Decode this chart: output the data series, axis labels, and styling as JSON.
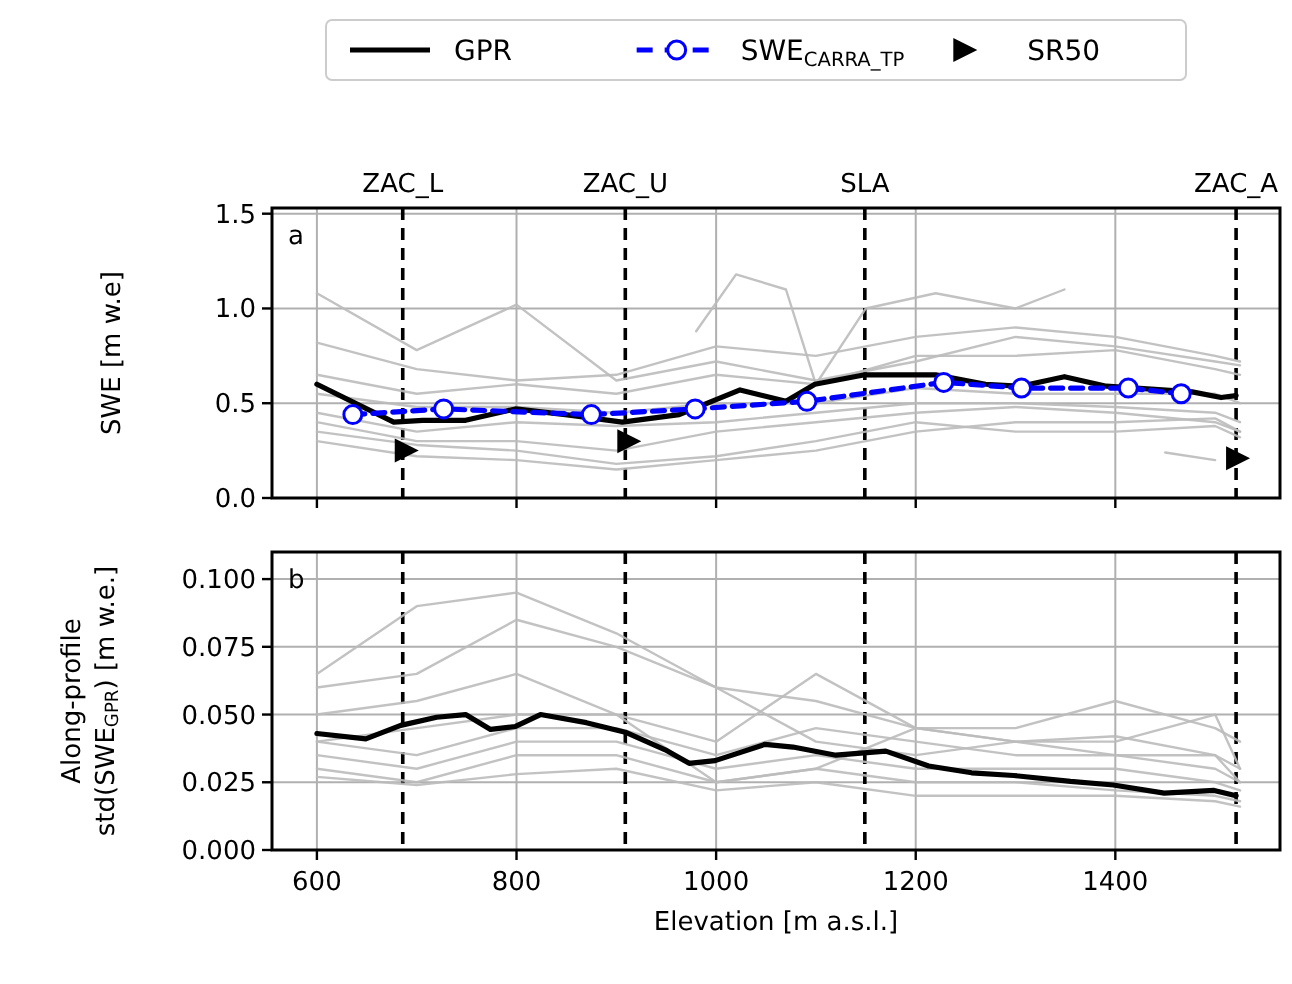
{
  "chart_data": [
    {
      "type": "line",
      "ylabel": "SWE [m w.e]",
      "xlim": [
        555,
        1565
      ],
      "xticks": [
        600,
        800,
        1000,
        1200,
        1400
      ],
      "ylim": [
        0,
        1.53
      ],
      "yticks": [
        {
          "value": 0,
          "label": "0.0"
        },
        {
          "value": 0.5,
          "label": "0.5"
        },
        {
          "value": 1,
          "label": "1.0"
        },
        {
          "value": 1.5,
          "label": "1.5"
        }
      ],
      "tick_labels": "y",
      "grid": true,
      "legend": "top",
      "annotations": [
        "a"
      ],
      "ref_lines": [
        {
          "axis": "x",
          "value": 686,
          "label": "ZAC_L",
          "line_style": "dashed",
          "color": "#000000"
        },
        {
          "axis": "x",
          "value": 909,
          "label": "ZAC_U",
          "line_style": "dashed",
          "color": "#000000"
        },
        {
          "axis": "x",
          "value": 1149,
          "label": "SLA",
          "line_style": "dashed",
          "color": "#000000"
        },
        {
          "axis": "x",
          "value": 1521,
          "label": "ZAC_A",
          "line_style": "dashed",
          "color": "#000000"
        }
      ],
      "series": [
        {
          "color": "#bbbbbb",
          "x": [
            600,
            700,
            800,
            900,
            1000,
            1100,
            1200,
            1300,
            1400,
            1500,
            1525
          ],
          "values": [
            1.08,
            0.78,
            1.02,
            0.62,
            0.72,
            0.62,
            0.72,
            0.85,
            0.8,
            0.72,
            0.7
          ]
        },
        {
          "color": "#bbbbbb",
          "x": [
            600,
            700,
            800,
            900,
            1000,
            1100,
            1200,
            1300,
            1400,
            1500,
            1525
          ],
          "values": [
            0.82,
            0.68,
            0.62,
            0.65,
            0.8,
            0.75,
            0.85,
            0.9,
            0.85,
            0.75,
            0.72
          ]
        },
        {
          "color": "#bbbbbb",
          "x": [
            600,
            700,
            800,
            900,
            1000,
            1100,
            1200,
            1300,
            1400,
            1500,
            1525
          ],
          "values": [
            0.65,
            0.55,
            0.6,
            0.55,
            0.65,
            0.6,
            0.75,
            0.75,
            0.78,
            0.68,
            0.65
          ]
        },
        {
          "color": "#bbbbbb",
          "x": [
            600,
            700,
            800,
            900,
            1000,
            1100,
            1200,
            1300,
            1400,
            1500,
            1525
          ],
          "values": [
            0.55,
            0.48,
            0.48,
            0.45,
            0.5,
            0.5,
            0.58,
            0.55,
            0.55,
            0.55,
            0.5
          ]
        },
        {
          "color": "#bbbbbb",
          "x": [
            600,
            700,
            800,
            900,
            1000,
            1100,
            1200,
            1300,
            1400,
            1500,
            1525
          ],
          "values": [
            0.45,
            0.35,
            0.4,
            0.38,
            0.4,
            0.45,
            0.5,
            0.5,
            0.48,
            0.45,
            0.4
          ]
        },
        {
          "color": "#bbbbbb",
          "x": [
            600,
            700,
            800,
            900,
            1000,
            1100,
            1200,
            1300,
            1400,
            1500,
            1525
          ],
          "values": [
            0.4,
            0.3,
            0.3,
            0.25,
            0.35,
            0.4,
            0.45,
            0.48,
            0.45,
            0.4,
            0.35
          ]
        },
        {
          "color": "#bbbbbb",
          "x": [
            600,
            700,
            800,
            900,
            1000,
            1100,
            1200,
            1300,
            1400,
            1500,
            1525
          ],
          "values": [
            0.35,
            0.28,
            0.25,
            0.18,
            0.22,
            0.3,
            0.4,
            0.35,
            0.35,
            0.38,
            0.32
          ]
        },
        {
          "color": "#bbbbbb",
          "x": [
            600,
            700,
            800,
            900,
            1000,
            1100,
            1200,
            1300,
            1400,
            1500,
            1525
          ],
          "values": [
            0.3,
            0.22,
            0.2,
            0.15,
            0.2,
            0.25,
            0.35,
            0.4,
            0.4,
            0.42,
            0.35
          ]
        },
        {
          "color": "#bbbbbb",
          "x": [
            980,
            1020,
            1070,
            1100,
            1150,
            1220,
            1300,
            1349
          ],
          "values": [
            0.88,
            1.18,
            1.1,
            0.6,
            1.0,
            1.08,
            1.0,
            1.1
          ]
        },
        {
          "color": "#bbbbbb",
          "x": [
            1450,
            1500
          ],
          "values": [
            0.24,
            0.2
          ]
        },
        {
          "name": "GPR",
          "color": "#000000",
          "line_style": "solid",
          "marker": "none",
          "x": [
            600,
            677,
            706,
            749,
            799,
            849,
            906,
            963,
            1024,
            1070,
            1099,
            1149,
            1220,
            1270,
            1305,
            1349,
            1391,
            1477,
            1506,
            1521
          ],
          "values": [
            0.6,
            0.4,
            0.41,
            0.41,
            0.47,
            0.44,
            0.4,
            0.44,
            0.57,
            0.51,
            0.6,
            0.65,
            0.65,
            0.6,
            0.59,
            0.64,
            0.59,
            0.56,
            0.53,
            0.54
          ]
        },
        {
          "name": "SWE$_{CARRA_TP}$",
          "color": "#0000ff",
          "line_style": "dashed",
          "marker": "circle",
          "x": [
            636,
            727,
            875,
            979,
            1091,
            1228,
            1306,
            1413,
            1466
          ],
          "values": [
            0.44,
            0.47,
            0.44,
            0.47,
            0.51,
            0.61,
            0.58,
            0.58,
            0.55
          ]
        },
        {
          "name": "SR50",
          "type": "scatter",
          "color": "#000000",
          "marker": "triangle",
          "x": [
            688,
            911,
            1521
          ],
          "values": [
            0.25,
            0.3,
            0.21
          ]
        }
      ]
    },
    {
      "type": "line",
      "xlabel": "Elevation [m a.s.l.]",
      "ylabel": "Along-profile\nstd(SWE$_{GPR}$) [m w.e.]",
      "xlim": [
        555,
        1565
      ],
      "xticks": [
        600,
        800,
        1000,
        1200,
        1400
      ],
      "ylim": [
        0,
        0.11
      ],
      "yticks": [
        {
          "value": 0,
          "label": "0.000"
        },
        {
          "value": 0.025,
          "label": "0.025"
        },
        {
          "value": 0.05,
          "label": "0.050"
        },
        {
          "value": 0.075,
          "label": "0.075"
        },
        {
          "value": 0.1,
          "label": "0.100"
        }
      ],
      "grid": true,
      "legend": false,
      "annotations": [
        "b"
      ],
      "ref_lines": [
        {
          "axis": "x",
          "value": 686,
          "line_style": "dashed",
          "color": "#000000"
        },
        {
          "axis": "x",
          "value": 909,
          "line_style": "dashed",
          "color": "#000000"
        },
        {
          "axis": "x",
          "value": 1149,
          "line_style": "dashed",
          "color": "#000000"
        },
        {
          "axis": "x",
          "value": 1521,
          "line_style": "dashed",
          "color": "#000000"
        }
      ],
      "series": [
        {
          "color": "#bbbbbb",
          "x": [
            600,
            700,
            800,
            900,
            1000,
            1100,
            1200,
            1300,
            1400,
            1500,
            1525
          ],
          "values": [
            0.065,
            0.09,
            0.095,
            0.08,
            0.06,
            0.04,
            0.035,
            0.04,
            0.035,
            0.03,
            0.025
          ]
        },
        {
          "color": "#bbbbbb",
          "x": [
            600,
            700,
            800,
            900,
            1000,
            1100,
            1200,
            1300,
            1400,
            1500,
            1525
          ],
          "values": [
            0.06,
            0.065,
            0.085,
            0.075,
            0.06,
            0.055,
            0.045,
            0.045,
            0.055,
            0.045,
            0.04
          ]
        },
        {
          "color": "#bbbbbb",
          "x": [
            600,
            700,
            800,
            900,
            1000,
            1100,
            1200,
            1300,
            1400,
            1500,
            1525
          ],
          "values": [
            0.05,
            0.055,
            0.065,
            0.05,
            0.04,
            0.065,
            0.045,
            0.04,
            0.04,
            0.05,
            0.03
          ]
        },
        {
          "color": "#bbbbbb",
          "x": [
            600,
            700,
            800,
            900,
            1000,
            1100,
            1200,
            1300,
            1400,
            1500,
            1525
          ],
          "values": [
            0.04,
            0.035,
            0.045,
            0.045,
            0.035,
            0.045,
            0.04,
            0.035,
            0.035,
            0.035,
            0.025
          ]
        },
        {
          "color": "#bbbbbb",
          "x": [
            600,
            700,
            800,
            900,
            1000,
            1100,
            1200,
            1300,
            1400,
            1500,
            1525
          ],
          "values": [
            0.035,
            0.03,
            0.04,
            0.04,
            0.03,
            0.035,
            0.03,
            0.03,
            0.03,
            0.025,
            0.022
          ]
        },
        {
          "color": "#bbbbbb",
          "x": [
            600,
            700,
            800,
            900,
            1000,
            1100,
            1200,
            1300,
            1400,
            1500,
            1525
          ],
          "values": [
            0.03,
            0.025,
            0.035,
            0.035,
            0.025,
            0.03,
            0.025,
            0.025,
            0.022,
            0.02,
            0.018
          ]
        },
        {
          "color": "#bbbbbb",
          "x": [
            600,
            700,
            800,
            900,
            1000,
            1100,
            1200,
            1300,
            1400,
            1500,
            1525
          ],
          "values": [
            0.027,
            0.024,
            0.028,
            0.03,
            0.022,
            0.025,
            0.02,
            0.02,
            0.02,
            0.018,
            0.016
          ]
        },
        {
          "color": "#bbbbbb",
          "x": [
            600,
            700,
            800,
            900,
            1000,
            1100,
            1200,
            1300,
            1400,
            1500,
            1525
          ],
          "values": [
            0.04,
            0.045,
            0.05,
            0.05,
            0.025,
            0.03,
            0.045,
            0.04,
            0.042,
            0.035,
            0.03
          ]
        },
        {
          "color": "#000000",
          "line_style": "solid",
          "marker": "none",
          "x": [
            600,
            649,
            684,
            720,
            749,
            774,
            799,
            824,
            870,
            909,
            949,
            973,
            999,
            1049,
            1077,
            1120,
            1170,
            1213,
            1256,
            1298,
            1355,
            1398,
            1449,
            1499,
            1521
          ],
          "values": [
            0.043,
            0.041,
            0.046,
            0.049,
            0.05,
            0.0445,
            0.0456,
            0.05,
            0.047,
            0.0435,
            0.037,
            0.032,
            0.033,
            0.039,
            0.038,
            0.035,
            0.0365,
            0.031,
            0.0285,
            0.0275,
            0.0253,
            0.024,
            0.021,
            0.022,
            0.02
          ]
        }
      ]
    }
  ]
}
